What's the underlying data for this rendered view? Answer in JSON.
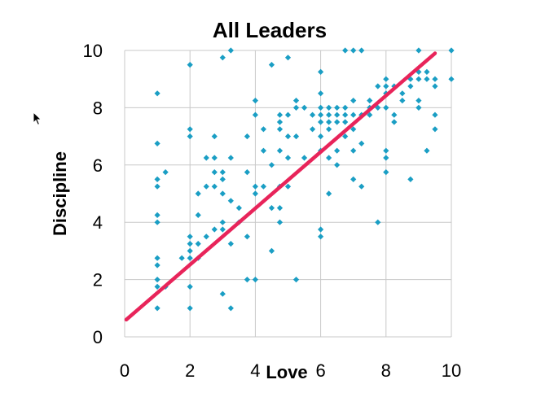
{
  "chart_data": {
    "type": "scatter",
    "title": "All Leaders",
    "xlabel": "Love",
    "ylabel": "Discipline",
    "xlim": [
      0,
      10
    ],
    "ylim": [
      0,
      10
    ],
    "xticks": [
      "0",
      "2",
      "4",
      "6",
      "8",
      "10"
    ],
    "yticks": [
      "0",
      "2",
      "4",
      "6",
      "8",
      "10"
    ],
    "grid": true,
    "legend": "none",
    "colors": {
      "points": "#1a9ec4",
      "trendline": "#e8245a"
    },
    "trendline": {
      "x": [
        0.05,
        9.5
      ],
      "y": [
        0.6,
        9.9
      ]
    },
    "points": [
      [
        1,
        8.5
      ],
      [
        1,
        6.75
      ],
      [
        1,
        5.5
      ],
      [
        1,
        5.25
      ],
      [
        1,
        4.25
      ],
      [
        1,
        4
      ],
      [
        1,
        2.75
      ],
      [
        1,
        2.5
      ],
      [
        1,
        2
      ],
      [
        1,
        1.75
      ],
      [
        1,
        1
      ],
      [
        1.25,
        5.75
      ],
      [
        1.25,
        1.75
      ],
      [
        1.75,
        2.75
      ],
      [
        2,
        9.5
      ],
      [
        2,
        7.25
      ],
      [
        2,
        7
      ],
      [
        2,
        3.5
      ],
      [
        2,
        3.25
      ],
      [
        2,
        3
      ],
      [
        2,
        2.75
      ],
      [
        2,
        1.75
      ],
      [
        2,
        1
      ],
      [
        2.25,
        5
      ],
      [
        2.25,
        4.25
      ],
      [
        2.25,
        3.25
      ],
      [
        2.25,
        2.75
      ],
      [
        2.5,
        6.25
      ],
      [
        2.5,
        5.25
      ],
      [
        2.5,
        3.5
      ],
      [
        2.75,
        7
      ],
      [
        2.75,
        6.25
      ],
      [
        2.75,
        5.75
      ],
      [
        2.75,
        5.25
      ],
      [
        2.75,
        3.75
      ],
      [
        3,
        9.75
      ],
      [
        3,
        5.75
      ],
      [
        3,
        5.5
      ],
      [
        3,
        5
      ],
      [
        3,
        4
      ],
      [
        3,
        3.75
      ],
      [
        3,
        1.5
      ],
      [
        3.25,
        10
      ],
      [
        3.25,
        6.25
      ],
      [
        3.25,
        4.75
      ],
      [
        3.25,
        3.25
      ],
      [
        3.25,
        1
      ],
      [
        3.5,
        4.5
      ],
      [
        3.5,
        4
      ],
      [
        3.75,
        7
      ],
      [
        3.75,
        5.75
      ],
      [
        3.75,
        3.5
      ],
      [
        3.75,
        2
      ],
      [
        4,
        8.25
      ],
      [
        4,
        7.75
      ],
      [
        4,
        5.25
      ],
      [
        4,
        5
      ],
      [
        4,
        2
      ],
      [
        4.25,
        7.25
      ],
      [
        4.25,
        6.5
      ],
      [
        4.25,
        5.25
      ],
      [
        4.5,
        9.5
      ],
      [
        4.5,
        6
      ],
      [
        4.5,
        4.5
      ],
      [
        4.5,
        3
      ],
      [
        4.75,
        7.75
      ],
      [
        4.75,
        7.5
      ],
      [
        4.75,
        7.25
      ],
      [
        4.75,
        6.5
      ],
      [
        4.75,
        5.25
      ],
      [
        4.75,
        4.5
      ],
      [
        4.75,
        4
      ],
      [
        5,
        9.75
      ],
      [
        5,
        7.75
      ],
      [
        5,
        7
      ],
      [
        5,
        6.25
      ],
      [
        5,
        5.25
      ],
      [
        5.25,
        8.25
      ],
      [
        5.25,
        8
      ],
      [
        5.25,
        7
      ],
      [
        5.25,
        2
      ],
      [
        5.5,
        8
      ],
      [
        5.5,
        6.25
      ],
      [
        5.75,
        7.75
      ],
      [
        5.75,
        7.25
      ],
      [
        6,
        9.25
      ],
      [
        6,
        8.5
      ],
      [
        6,
        8
      ],
      [
        6,
        7.75
      ],
      [
        6,
        7.5
      ],
      [
        6,
        7
      ],
      [
        6,
        6.5
      ],
      [
        6,
        3.75
      ],
      [
        6,
        3.5
      ],
      [
        6.25,
        8
      ],
      [
        6.25,
        7.75
      ],
      [
        6.25,
        7.5
      ],
      [
        6.25,
        7.25
      ],
      [
        6.25,
        6.25
      ],
      [
        6.25,
        5
      ],
      [
        6.5,
        8
      ],
      [
        6.5,
        7.75
      ],
      [
        6.5,
        7.5
      ],
      [
        6.5,
        6.5
      ],
      [
        6.5,
        6
      ],
      [
        6.75,
        10
      ],
      [
        6.75,
        8
      ],
      [
        6.75,
        7.75
      ],
      [
        6.75,
        7.5
      ],
      [
        6.75,
        7
      ],
      [
        7,
        8.25
      ],
      [
        7,
        7.75
      ],
      [
        7,
        7.25
      ],
      [
        7,
        6.5
      ],
      [
        7,
        5.5
      ],
      [
        7,
        10
      ],
      [
        7.25,
        10
      ],
      [
        7.25,
        7.75
      ],
      [
        7.25,
        6.75
      ],
      [
        7.25,
        5.25
      ],
      [
        7.5,
        8.25
      ],
      [
        7.5,
        8
      ],
      [
        7.5,
        7.75
      ],
      [
        7.75,
        8.75
      ],
      [
        7.75,
        8
      ],
      [
        7.75,
        4
      ],
      [
        8,
        9
      ],
      [
        8,
        8.75
      ],
      [
        8,
        8.5
      ],
      [
        8,
        8
      ],
      [
        8,
        6.5
      ],
      [
        8,
        6.25
      ],
      [
        8,
        5.75
      ],
      [
        8.25,
        8.75
      ],
      [
        8.25,
        7.75
      ],
      [
        8.25,
        7.5
      ],
      [
        8.5,
        8.5
      ],
      [
        8.5,
        8.25
      ],
      [
        8.75,
        9
      ],
      [
        8.75,
        8.75
      ],
      [
        8.75,
        5.5
      ],
      [
        9,
        10
      ],
      [
        9,
        9.25
      ],
      [
        9,
        9
      ],
      [
        9,
        8.25
      ],
      [
        9,
        8
      ],
      [
        9.25,
        9.25
      ],
      [
        9.25,
        9
      ],
      [
        9.25,
        6.5
      ],
      [
        9.5,
        9
      ],
      [
        9.5,
        8.75
      ],
      [
        9.5,
        7.75
      ],
      [
        9.5,
        7.25
      ],
      [
        10,
        10
      ],
      [
        10,
        9
      ]
    ]
  }
}
